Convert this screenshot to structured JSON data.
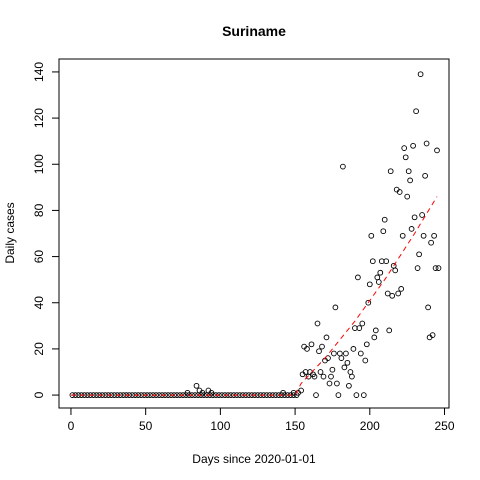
{
  "chart_data": {
    "type": "scatter",
    "title": "Suriname",
    "xlabel": "Days since 2020-01-01",
    "ylabel": "Daily cases",
    "xlim": [
      -8,
      253
    ],
    "ylim": [
      -5.6,
      145.6
    ],
    "xticks": [
      0,
      50,
      100,
      150,
      200,
      250
    ],
    "yticks": [
      0,
      20,
      40,
      60,
      80,
      100,
      120,
      140
    ],
    "grid": false,
    "series": [
      {
        "values": [
          [
            1,
            0
          ],
          [
            3,
            0
          ],
          [
            5,
            0
          ],
          [
            7,
            0
          ],
          [
            9,
            0
          ],
          [
            11,
            0
          ],
          [
            13,
            0
          ],
          [
            15,
            0
          ],
          [
            17,
            0
          ],
          [
            19,
            0
          ],
          [
            21,
            0
          ],
          [
            23,
            0
          ],
          [
            25,
            0
          ],
          [
            27,
            0
          ],
          [
            29,
            0
          ],
          [
            31,
            0
          ],
          [
            33,
            0
          ],
          [
            35,
            0
          ],
          [
            37,
            0
          ],
          [
            39,
            0
          ],
          [
            41,
            0
          ],
          [
            43,
            0
          ],
          [
            45,
            0
          ],
          [
            47,
            0
          ],
          [
            49,
            0
          ],
          [
            51,
            0
          ],
          [
            53,
            0
          ],
          [
            55,
            0
          ],
          [
            57,
            0
          ],
          [
            59,
            0
          ],
          [
            61,
            0
          ],
          [
            63,
            0
          ],
          [
            65,
            0
          ],
          [
            67,
            0
          ],
          [
            69,
            0
          ],
          [
            71,
            0
          ],
          [
            73,
            0
          ],
          [
            75,
            0
          ],
          [
            77,
            0
          ],
          [
            79,
            0
          ],
          [
            81,
            0
          ],
          [
            83,
            0
          ],
          [
            85,
            0
          ],
          [
            87,
            0
          ],
          [
            89,
            0
          ],
          [
            91,
            0
          ],
          [
            93,
            0
          ],
          [
            95,
            0
          ],
          [
            97,
            0
          ],
          [
            99,
            0
          ],
          [
            101,
            0
          ],
          [
            103,
            0
          ],
          [
            105,
            0
          ],
          [
            107,
            0
          ],
          [
            109,
            0
          ],
          [
            111,
            0
          ],
          [
            113,
            0
          ],
          [
            115,
            0
          ],
          [
            117,
            0
          ],
          [
            119,
            0
          ],
          [
            121,
            0
          ],
          [
            123,
            0
          ],
          [
            125,
            0
          ],
          [
            127,
            0
          ],
          [
            129,
            0
          ],
          [
            131,
            0
          ],
          [
            133,
            0
          ],
          [
            135,
            0
          ],
          [
            137,
            0
          ],
          [
            139,
            0
          ],
          [
            141,
            0
          ],
          [
            143,
            0
          ],
          [
            145,
            0
          ],
          [
            147,
            0
          ],
          [
            149,
            0
          ],
          [
            151,
            0
          ],
          [
            78,
            1
          ],
          [
            84,
            4
          ],
          [
            86,
            2
          ],
          [
            88,
            1
          ],
          [
            92,
            2
          ],
          [
            94,
            1
          ],
          [
            142,
            1
          ],
          [
            149,
            1
          ],
          [
            152,
            1
          ],
          [
            154,
            2
          ],
          [
            155,
            9
          ],
          [
            156,
            21
          ],
          [
            157,
            10
          ],
          [
            158,
            20
          ],
          [
            159,
            8
          ],
          [
            160,
            10
          ],
          [
            161,
            22
          ],
          [
            162,
            9
          ],
          [
            163,
            8
          ],
          [
            164,
            0
          ],
          [
            165,
            31
          ],
          [
            166,
            19
          ],
          [
            167,
            10
          ],
          [
            168,
            21
          ],
          [
            169,
            8
          ],
          [
            170,
            15
          ],
          [
            171,
            25
          ],
          [
            172,
            16
          ],
          [
            173,
            5
          ],
          [
            174,
            8
          ],
          [
            175,
            11
          ],
          [
            176,
            18
          ],
          [
            177,
            38
          ],
          [
            178,
            5
          ],
          [
            179,
            0
          ],
          [
            180,
            18
          ],
          [
            181,
            16
          ],
          [
            182,
            99
          ],
          [
            183,
            12
          ],
          [
            184,
            18
          ],
          [
            185,
            14
          ],
          [
            186,
            4
          ],
          [
            187,
            10
          ],
          [
            188,
            8
          ],
          [
            189,
            20
          ],
          [
            190,
            29
          ],
          [
            191,
            0
          ],
          [
            192,
            51
          ],
          [
            193,
            29
          ],
          [
            194,
            18
          ],
          [
            195,
            31
          ],
          [
            196,
            0
          ],
          [
            197,
            15
          ],
          [
            198,
            22
          ],
          [
            199,
            40
          ],
          [
            200,
            48
          ],
          [
            201,
            69
          ],
          [
            202,
            58
          ],
          [
            203,
            25
          ],
          [
            204,
            28
          ],
          [
            205,
            51
          ],
          [
            206,
            49
          ],
          [
            207,
            53
          ],
          [
            208,
            58
          ],
          [
            209,
            71
          ],
          [
            210,
            76
          ],
          [
            211,
            58
          ],
          [
            212,
            44
          ],
          [
            213,
            28
          ],
          [
            214,
            97
          ],
          [
            215,
            43
          ],
          [
            216,
            56
          ],
          [
            217,
            54
          ],
          [
            218,
            89
          ],
          [
            219,
            44
          ],
          [
            220,
            88
          ],
          [
            221,
            46
          ],
          [
            222,
            69
          ],
          [
            223,
            107
          ],
          [
            224,
            103
          ],
          [
            225,
            86
          ],
          [
            226,
            97
          ],
          [
            227,
            93
          ],
          [
            228,
            72
          ],
          [
            229,
            108
          ],
          [
            230,
            77
          ],
          [
            231,
            123
          ],
          [
            232,
            55
          ],
          [
            233,
            61
          ],
          [
            234,
            139
          ],
          [
            235,
            78
          ],
          [
            236,
            69
          ],
          [
            237,
            95
          ],
          [
            238,
            109
          ],
          [
            239,
            38
          ],
          [
            240,
            25
          ],
          [
            241,
            66
          ],
          [
            242,
            26
          ],
          [
            243,
            69
          ],
          [
            244,
            55
          ],
          [
            245,
            106
          ],
          [
            246,
            55
          ]
        ]
      }
    ],
    "trend": {
      "style": "dashed",
      "color": "#ff0000",
      "values": [
        [
          0,
          0
        ],
        [
          150,
          0
        ],
        [
          154,
          5
        ],
        [
          170,
          16
        ],
        [
          190,
          32
        ],
        [
          210,
          50
        ],
        [
          230,
          70
        ],
        [
          245,
          86
        ]
      ]
    }
  }
}
